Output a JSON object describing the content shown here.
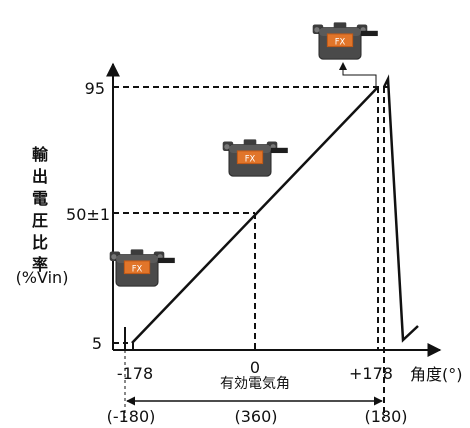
{
  "chart_data": {
    "type": "line",
    "ylabel_chars": [
      "輸",
      "出",
      "電",
      "圧",
      "比",
      "率"
    ],
    "yunit": "(%Vin)",
    "xlabel": "角度(°)",
    "range_label": "有効電気角",
    "y_ticks": [
      "5",
      "50±1",
      "95"
    ],
    "x_ticks": [
      "-178",
      "0",
      "+178"
    ],
    "x_ticks_secondary": [
      "(-180)",
      "(360)",
      "(180)"
    ],
    "xlim": [
      -180,
      180
    ],
    "ylim": [
      0,
      100
    ],
    "series": [
      {
        "x": [
          -178,
          178
        ],
        "y": [
          5,
          95
        ]
      }
    ],
    "sensor_text": "FX"
  }
}
